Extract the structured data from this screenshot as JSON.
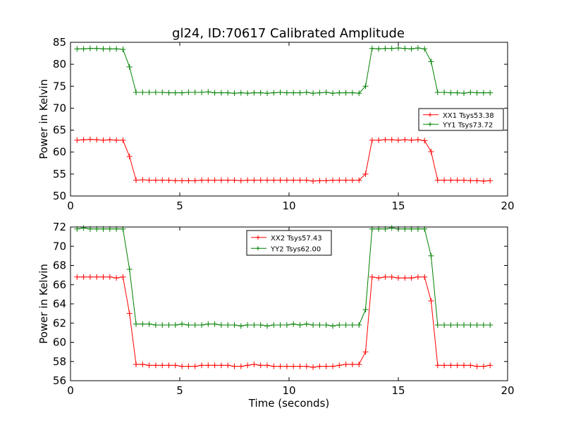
{
  "figure": {
    "title": "gl24, ID:70617 Calibrated Amplitude"
  },
  "chart_data": [
    {
      "type": "line",
      "title": "gl24, ID:70617 Calibrated Amplitude",
      "xlabel": "",
      "ylabel": "Power in Kelvin",
      "xlim": [
        0,
        20
      ],
      "ylim": [
        50,
        85
      ],
      "xticks": [
        0,
        5,
        10,
        15,
        20
      ],
      "yticks": [
        50,
        55,
        60,
        65,
        70,
        75,
        80,
        85
      ],
      "legend_position": "right",
      "grid": false,
      "series": [
        {
          "name": "XX1 Tsys53.38",
          "color": "#ff0000",
          "x": [
            0.3,
            0.6,
            0.9,
            1.2,
            1.5,
            1.8,
            2.1,
            2.4,
            2.7,
            3.0,
            3.3,
            3.6,
            3.9,
            4.2,
            4.5,
            4.8,
            5.1,
            5.4,
            5.7,
            6.0,
            6.3,
            6.6,
            6.9,
            7.2,
            7.5,
            7.8,
            8.1,
            8.4,
            8.7,
            9.0,
            9.3,
            9.6,
            9.9,
            10.2,
            10.5,
            10.8,
            11.1,
            11.4,
            11.7,
            12.0,
            12.3,
            12.6,
            12.9,
            13.2,
            13.5,
            13.8,
            14.1,
            14.4,
            14.7,
            15.0,
            15.3,
            15.6,
            15.9,
            16.2,
            16.5,
            16.8,
            17.1,
            17.4,
            17.7,
            18.0,
            18.3,
            18.6,
            18.9,
            19.2
          ],
          "y": [
            62.7,
            62.8,
            62.9,
            62.8,
            62.7,
            62.8,
            62.7,
            62.7,
            59.0,
            53.6,
            53.7,
            53.6,
            53.6,
            53.6,
            53.6,
            53.5,
            53.5,
            53.5,
            53.5,
            53.6,
            53.6,
            53.6,
            53.6,
            53.6,
            53.6,
            53.5,
            53.6,
            53.6,
            53.6,
            53.6,
            53.6,
            53.6,
            53.6,
            53.6,
            53.6,
            53.6,
            53.4,
            53.5,
            53.5,
            53.6,
            53.6,
            53.6,
            53.6,
            53.6,
            55.0,
            62.7,
            62.7,
            62.8,
            62.8,
            62.7,
            62.8,
            62.7,
            62.8,
            62.6,
            60.1,
            53.6,
            53.6,
            53.6,
            53.6,
            53.6,
            53.5,
            53.5,
            53.4,
            53.5
          ]
        },
        {
          "name": "YY1 Tsys73.72",
          "color": "#008000",
          "x": [
            0.3,
            0.6,
            0.9,
            1.2,
            1.5,
            1.8,
            2.1,
            2.4,
            2.7,
            3.0,
            3.3,
            3.6,
            3.9,
            4.2,
            4.5,
            4.8,
            5.1,
            5.4,
            5.7,
            6.0,
            6.3,
            6.6,
            6.9,
            7.2,
            7.5,
            7.8,
            8.1,
            8.4,
            8.7,
            9.0,
            9.3,
            9.6,
            9.9,
            10.2,
            10.5,
            10.8,
            11.1,
            11.4,
            11.7,
            12.0,
            12.3,
            12.6,
            12.9,
            13.2,
            13.5,
            13.8,
            14.1,
            14.4,
            14.7,
            15.0,
            15.3,
            15.6,
            15.9,
            16.2,
            16.5,
            16.8,
            17.1,
            17.4,
            17.7,
            18.0,
            18.3,
            18.6,
            18.9,
            19.2
          ],
          "y": [
            83.5,
            83.5,
            83.6,
            83.6,
            83.5,
            83.5,
            83.5,
            83.4,
            79.4,
            73.6,
            73.6,
            73.6,
            73.6,
            73.6,
            73.5,
            73.5,
            73.5,
            73.6,
            73.6,
            73.6,
            73.7,
            73.5,
            73.5,
            73.5,
            73.4,
            73.5,
            73.4,
            73.5,
            73.5,
            73.4,
            73.5,
            73.6,
            73.5,
            73.5,
            73.5,
            73.6,
            73.4,
            73.5,
            73.6,
            73.4,
            73.5,
            73.5,
            73.5,
            73.4,
            75.0,
            83.6,
            83.5,
            83.6,
            83.6,
            83.7,
            83.6,
            83.5,
            83.7,
            83.5,
            80.6,
            73.6,
            73.6,
            73.5,
            73.5,
            73.4,
            73.6,
            73.5,
            73.5,
            73.5
          ]
        }
      ]
    },
    {
      "type": "line",
      "title": "",
      "xlabel": "Time (seconds)",
      "ylabel": "Power in Kelvin",
      "xlim": [
        0,
        20
      ],
      "ylim": [
        56,
        72
      ],
      "xticks": [
        0,
        5,
        10,
        15,
        20
      ],
      "yticks": [
        56,
        58,
        60,
        62,
        64,
        66,
        68,
        70,
        72
      ],
      "legend_position": "upper-center",
      "grid": false,
      "series": [
        {
          "name": "XX2 Tsys57.43",
          "color": "#ff0000",
          "x": [
            0.3,
            0.6,
            0.9,
            1.2,
            1.5,
            1.8,
            2.1,
            2.4,
            2.7,
            3.0,
            3.3,
            3.6,
            3.9,
            4.2,
            4.5,
            4.8,
            5.1,
            5.4,
            5.7,
            6.0,
            6.3,
            6.6,
            6.9,
            7.2,
            7.5,
            7.8,
            8.1,
            8.4,
            8.7,
            9.0,
            9.3,
            9.6,
            9.9,
            10.2,
            10.5,
            10.8,
            11.1,
            11.4,
            11.7,
            12.0,
            12.3,
            12.6,
            12.9,
            13.2,
            13.5,
            13.8,
            14.1,
            14.4,
            14.7,
            15.0,
            15.3,
            15.6,
            15.9,
            16.2,
            16.5,
            16.8,
            17.1,
            17.4,
            17.7,
            18.0,
            18.3,
            18.6,
            18.9,
            19.2
          ],
          "y": [
            66.8,
            66.8,
            66.8,
            66.8,
            66.8,
            66.8,
            66.7,
            66.8,
            63.0,
            57.7,
            57.7,
            57.6,
            57.6,
            57.6,
            57.6,
            57.6,
            57.5,
            57.5,
            57.5,
            57.6,
            57.6,
            57.6,
            57.6,
            57.6,
            57.5,
            57.5,
            57.6,
            57.7,
            57.6,
            57.6,
            57.5,
            57.5,
            57.5,
            57.5,
            57.5,
            57.5,
            57.4,
            57.5,
            57.5,
            57.5,
            57.6,
            57.7,
            57.7,
            57.7,
            59.0,
            66.8,
            66.7,
            66.8,
            66.8,
            66.7,
            66.7,
            66.7,
            66.8,
            66.8,
            64.3,
            57.6,
            57.6,
            57.6,
            57.6,
            57.6,
            57.6,
            57.5,
            57.5,
            57.6
          ]
        },
        {
          "name": "YY2 Tsys62.00",
          "color": "#008000",
          "x": [
            0.3,
            0.6,
            0.9,
            1.2,
            1.5,
            1.8,
            2.1,
            2.4,
            2.7,
            3.0,
            3.3,
            3.6,
            3.9,
            4.2,
            4.5,
            4.8,
            5.1,
            5.4,
            5.7,
            6.0,
            6.3,
            6.6,
            6.9,
            7.2,
            7.5,
            7.8,
            8.1,
            8.4,
            8.7,
            9.0,
            9.3,
            9.6,
            9.9,
            10.2,
            10.5,
            10.8,
            11.1,
            11.4,
            11.7,
            12.0,
            12.3,
            12.6,
            12.9,
            13.2,
            13.5,
            13.8,
            14.1,
            14.4,
            14.7,
            15.0,
            15.3,
            15.6,
            15.9,
            16.2,
            16.5,
            16.8,
            17.1,
            17.4,
            17.7,
            18.0,
            18.3,
            18.6,
            18.9,
            19.2
          ],
          "y": [
            71.8,
            71.9,
            71.8,
            71.8,
            71.8,
            71.8,
            71.8,
            71.8,
            67.6,
            61.9,
            61.9,
            61.9,
            61.8,
            61.8,
            61.8,
            61.8,
            61.9,
            61.8,
            61.8,
            61.8,
            61.9,
            61.9,
            61.8,
            61.8,
            61.8,
            61.7,
            61.8,
            61.8,
            61.8,
            61.7,
            61.8,
            61.8,
            61.8,
            61.9,
            61.8,
            61.9,
            61.8,
            61.8,
            61.8,
            61.7,
            61.8,
            61.8,
            61.8,
            61.8,
            63.4,
            71.8,
            71.8,
            71.8,
            71.9,
            71.8,
            71.8,
            71.8,
            71.8,
            71.8,
            69.0,
            61.8,
            61.8,
            61.8,
            61.8,
            61.8,
            61.8,
            61.8,
            61.8,
            61.8
          ]
        }
      ]
    }
  ]
}
